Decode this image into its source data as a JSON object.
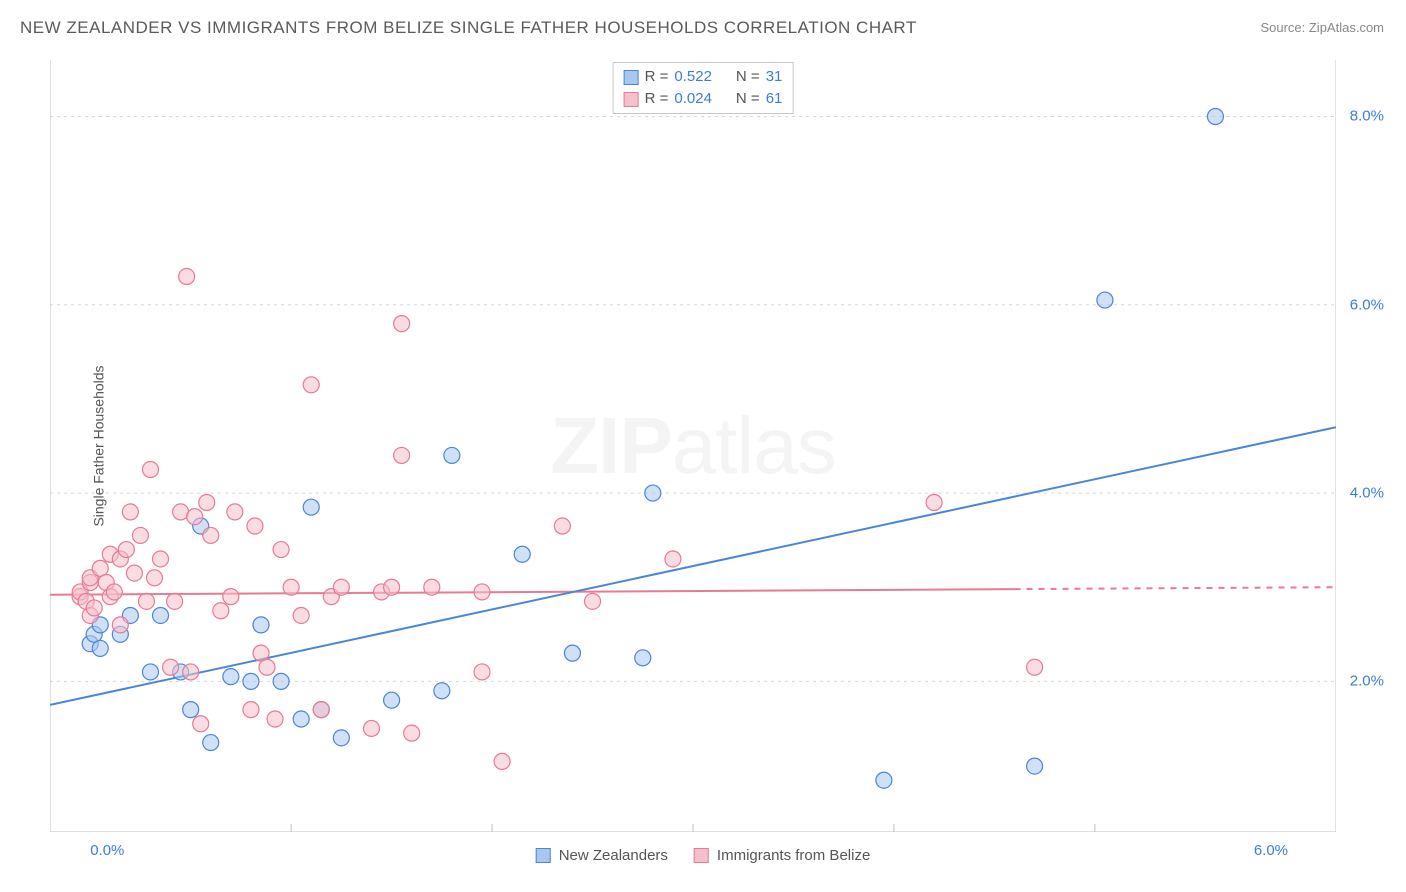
{
  "title": "NEW ZEALANDER VS IMMIGRANTS FROM BELIZE SINGLE FATHER HOUSEHOLDS CORRELATION CHART",
  "source": "Source: ZipAtlas.com",
  "ylabel": "Single Father Households",
  "watermark_a": "ZIP",
  "watermark_b": "atlas",
  "chart": {
    "type": "scatter",
    "xlim": [
      -0.2,
      6.2
    ],
    "ylim": [
      0.4,
      8.6
    ],
    "xticks": [
      0.0,
      6.0
    ],
    "xtick_labels": [
      "0.0%",
      "6.0%"
    ],
    "yticks": [
      2.0,
      4.0,
      6.0,
      8.0
    ],
    "ytick_labels": [
      "2.0%",
      "4.0%",
      "6.0%",
      "8.0%"
    ],
    "xgrid_minor": [
      1.0,
      2.0,
      3.0,
      4.0,
      5.0
    ],
    "grid_color": "#d8d8d8",
    "axis_color": "#c0c0c0",
    "background_color": "#ffffff",
    "marker_radius": 8,
    "marker_stroke_width": 1.2,
    "line_stroke_width": 2,
    "series": [
      {
        "name": "New Zealanders",
        "fill": "#a7c7f0",
        "stroke": "#4a86d8",
        "fill_opacity": 0.55,
        "r_label": "R = ",
        "r_value": "0.522",
        "n_label": "N = ",
        "n_value": "31",
        "trend": {
          "x1": -0.2,
          "y1": 1.75,
          "x2": 6.2,
          "y2": 4.7,
          "dash_from_x": null
        },
        "points": [
          {
            "x": 0.0,
            "y": 2.4
          },
          {
            "x": 0.02,
            "y": 2.5
          },
          {
            "x": 0.05,
            "y": 2.35
          },
          {
            "x": 0.05,
            "y": 2.6
          },
          {
            "x": 0.15,
            "y": 2.5
          },
          {
            "x": 0.2,
            "y": 2.7
          },
          {
            "x": 0.3,
            "y": 2.1
          },
          {
            "x": 0.35,
            "y": 2.7
          },
          {
            "x": 0.45,
            "y": 2.1
          },
          {
            "x": 0.5,
            "y": 1.7
          },
          {
            "x": 0.55,
            "y": 3.65
          },
          {
            "x": 0.6,
            "y": 1.35
          },
          {
            "x": 0.7,
            "y": 2.05
          },
          {
            "x": 0.8,
            "y": 2.0
          },
          {
            "x": 0.85,
            "y": 2.6
          },
          {
            "x": 0.95,
            "y": 2.0
          },
          {
            "x": 1.05,
            "y": 1.6
          },
          {
            "x": 1.1,
            "y": 3.85
          },
          {
            "x": 1.15,
            "y": 1.7
          },
          {
            "x": 1.25,
            "y": 1.4
          },
          {
            "x": 1.5,
            "y": 1.8
          },
          {
            "x": 1.75,
            "y": 1.9
          },
          {
            "x": 1.8,
            "y": 4.4
          },
          {
            "x": 2.15,
            "y": 3.35
          },
          {
            "x": 2.4,
            "y": 2.3
          },
          {
            "x": 2.75,
            "y": 2.25
          },
          {
            "x": 2.8,
            "y": 4.0
          },
          {
            "x": 3.95,
            "y": 0.95
          },
          {
            "x": 4.7,
            "y": 1.1
          },
          {
            "x": 5.05,
            "y": 6.05
          },
          {
            "x": 5.6,
            "y": 8.0
          }
        ]
      },
      {
        "name": "Immigrants from Belize",
        "fill": "#f5c0cb",
        "stroke": "#e77a94",
        "fill_opacity": 0.55,
        "r_label": "R = ",
        "r_value": "0.024",
        "n_label": "N = ",
        "n_value": "61",
        "trend": {
          "x1": -0.2,
          "y1": 2.92,
          "x2": 6.2,
          "y2": 3.0,
          "dash_from_x": 4.6
        },
        "points": [
          {
            "x": -0.05,
            "y": 2.9
          },
          {
            "x": -0.05,
            "y": 2.95
          },
          {
            "x": -0.02,
            "y": 2.85
          },
          {
            "x": 0.0,
            "y": 2.7
          },
          {
            "x": 0.0,
            "y": 3.05
          },
          {
            "x": 0.0,
            "y": 3.1
          },
          {
            "x": 0.02,
            "y": 2.78
          },
          {
            "x": 0.05,
            "y": 3.2
          },
          {
            "x": 0.08,
            "y": 3.05
          },
          {
            "x": 0.1,
            "y": 3.35
          },
          {
            "x": 0.1,
            "y": 2.9
          },
          {
            "x": 0.12,
            "y": 2.95
          },
          {
            "x": 0.15,
            "y": 2.6
          },
          {
            "x": 0.15,
            "y": 3.3
          },
          {
            "x": 0.18,
            "y": 3.4
          },
          {
            "x": 0.2,
            "y": 3.8
          },
          {
            "x": 0.22,
            "y": 3.15
          },
          {
            "x": 0.25,
            "y": 3.55
          },
          {
            "x": 0.28,
            "y": 2.85
          },
          {
            "x": 0.3,
            "y": 4.25
          },
          {
            "x": 0.32,
            "y": 3.1
          },
          {
            "x": 0.35,
            "y": 3.3
          },
          {
            "x": 0.4,
            "y": 2.15
          },
          {
            "x": 0.42,
            "y": 2.85
          },
          {
            "x": 0.45,
            "y": 3.8
          },
          {
            "x": 0.48,
            "y": 6.3
          },
          {
            "x": 0.5,
            "y": 2.1
          },
          {
            "x": 0.52,
            "y": 3.75
          },
          {
            "x": 0.55,
            "y": 1.55
          },
          {
            "x": 0.58,
            "y": 3.9
          },
          {
            "x": 0.6,
            "y": 3.55
          },
          {
            "x": 0.65,
            "y": 2.75
          },
          {
            "x": 0.7,
            "y": 2.9
          },
          {
            "x": 0.72,
            "y": 3.8
          },
          {
            "x": 0.8,
            "y": 1.7
          },
          {
            "x": 0.82,
            "y": 3.65
          },
          {
            "x": 0.85,
            "y": 2.3
          },
          {
            "x": 0.88,
            "y": 2.15
          },
          {
            "x": 0.92,
            "y": 1.6
          },
          {
            "x": 0.95,
            "y": 3.4
          },
          {
            "x": 1.0,
            "y": 3.0
          },
          {
            "x": 1.05,
            "y": 2.7
          },
          {
            "x": 1.1,
            "y": 5.15
          },
          {
            "x": 1.15,
            "y": 1.7
          },
          {
            "x": 1.2,
            "y": 2.9
          },
          {
            "x": 1.25,
            "y": 3.0
          },
          {
            "x": 1.4,
            "y": 1.5
          },
          {
            "x": 1.45,
            "y": 2.95
          },
          {
            "x": 1.5,
            "y": 3.0
          },
          {
            "x": 1.55,
            "y": 4.4
          },
          {
            "x": 1.55,
            "y": 5.8
          },
          {
            "x": 1.6,
            "y": 1.45
          },
          {
            "x": 1.7,
            "y": 3.0
          },
          {
            "x": 1.95,
            "y": 2.1
          },
          {
            "x": 1.95,
            "y": 2.95
          },
          {
            "x": 2.05,
            "y": 1.15
          },
          {
            "x": 2.35,
            "y": 3.65
          },
          {
            "x": 2.5,
            "y": 2.85
          },
          {
            "x": 2.9,
            "y": 3.3
          },
          {
            "x": 4.2,
            "y": 3.9
          },
          {
            "x": 4.7,
            "y": 2.15
          }
        ]
      }
    ]
  },
  "legend_bottom": {
    "series_a": "New Zealanders",
    "series_b": "Immigrants from Belize"
  }
}
